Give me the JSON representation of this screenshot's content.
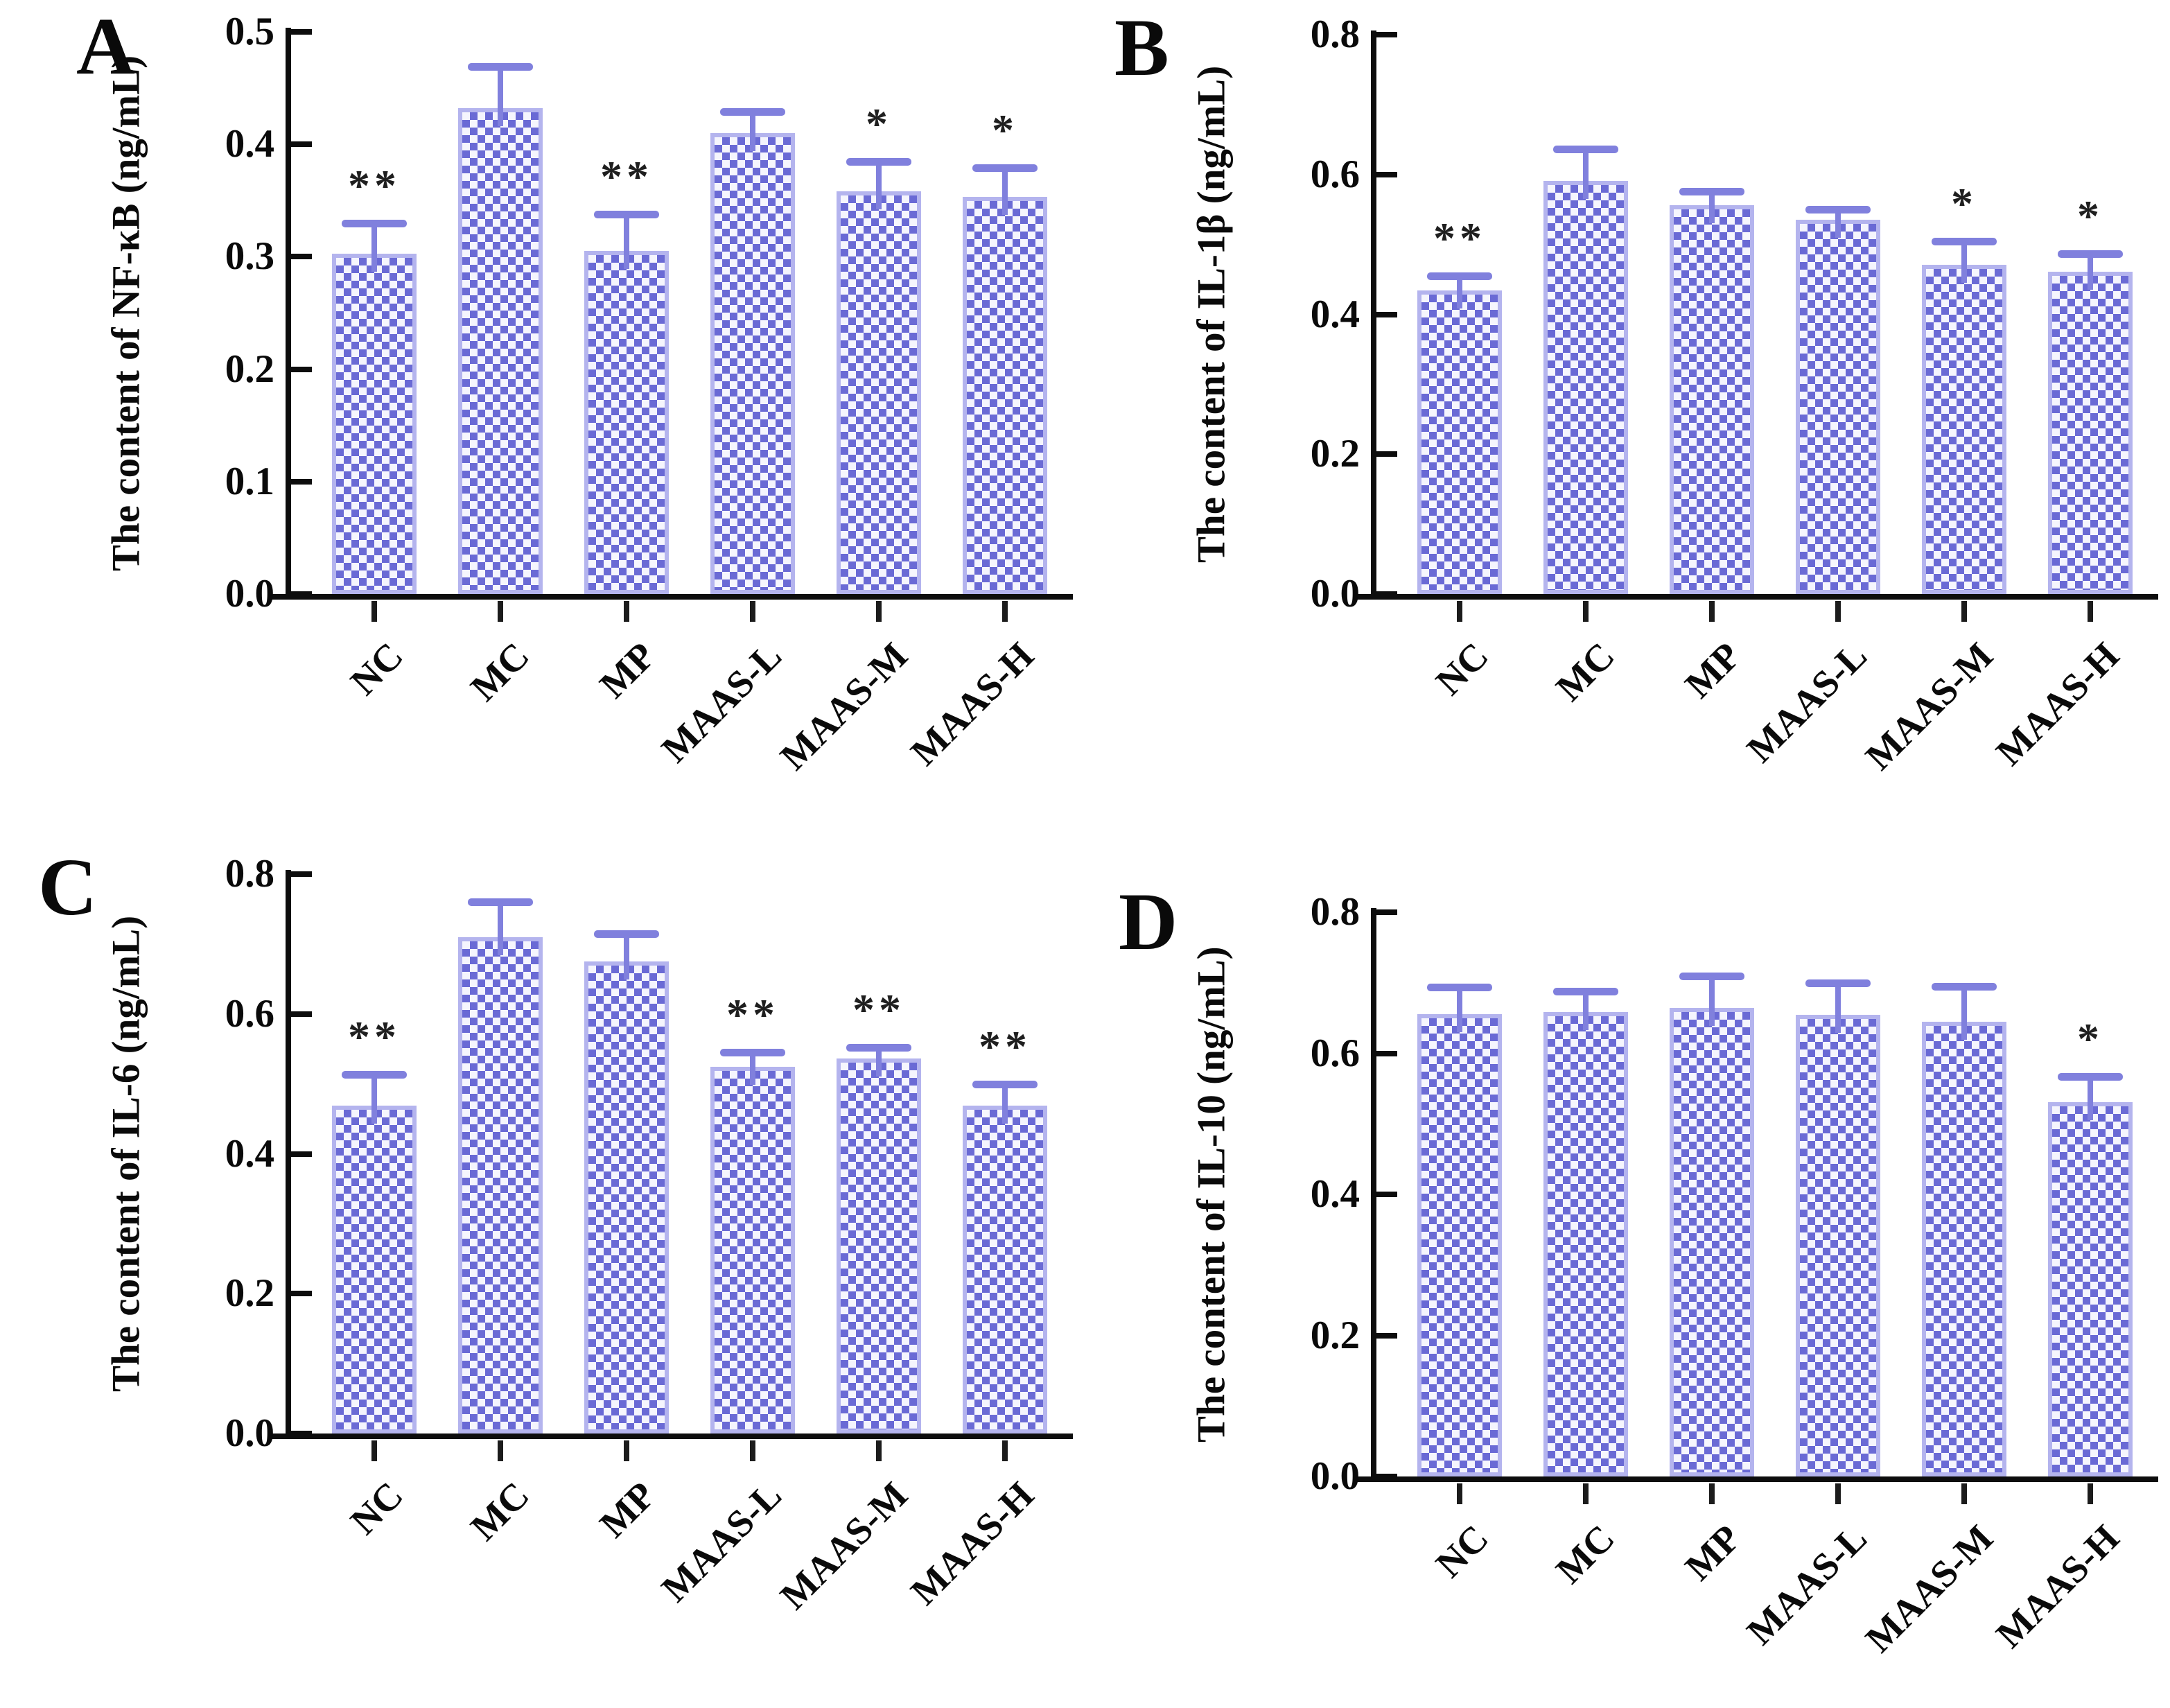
{
  "style": {
    "checker_blue": "#6a6ad5",
    "checker_white": "#f5f5fd",
    "bar_outline": "#b4b4ee",
    "error_bar": "#8080dd",
    "axis_color": "#0d0d0d",
    "significance_color": "#1f1f1f",
    "background": "#ffffff"
  },
  "chart_data": [
    {
      "type": "bar",
      "panel_label": "A",
      "title": "",
      "ylabel": "The content of NF-κB (ng/mL)",
      "xlabel": "",
      "ylim": [
        0.0,
        0.5
      ],
      "ytick_labels": [
        "0.0",
        "0.1",
        "0.2",
        "0.3",
        "0.4",
        "0.5"
      ],
      "grid": false,
      "legend": null,
      "bar_pattern": "checkerboard",
      "categories": [
        "NC",
        "MC",
        "MP",
        "MAAS-L",
        "MAAS-M",
        "MAAS-H"
      ],
      "values": [
        0.303,
        0.432,
        0.305,
        0.41,
        0.358,
        0.353
      ],
      "errors": [
        0.027,
        0.037,
        0.033,
        0.019,
        0.027,
        0.026
      ],
      "significance": [
        "**",
        "",
        "**",
        "",
        "*",
        "*"
      ]
    },
    {
      "type": "bar",
      "panel_label": "B",
      "title": "",
      "ylabel": "The content of IL-1β (ng/mL)",
      "xlabel": "",
      "ylim": [
        0.0,
        0.8
      ],
      "ytick_labels": [
        "0.0",
        "0.2",
        "0.4",
        "0.6",
        "0.8"
      ],
      "grid": false,
      "legend": null,
      "bar_pattern": "checkerboard",
      "categories": [
        "NC",
        "MC",
        "MP",
        "MAAS-L",
        "MAAS-M",
        "MAAS-H"
      ],
      "values": [
        0.434,
        0.591,
        0.556,
        0.535,
        0.471,
        0.461
      ],
      "errors": [
        0.021,
        0.045,
        0.02,
        0.015,
        0.034,
        0.026
      ],
      "significance": [
        "**",
        "",
        "",
        "",
        "*",
        "*"
      ]
    },
    {
      "type": "bar",
      "panel_label": "C",
      "title": "",
      "ylabel": "The content of IL-6 (ng/mL)",
      "xlabel": "",
      "ylim": [
        0.0,
        0.8
      ],
      "ytick_labels": [
        "0.0",
        "0.2",
        "0.4",
        "0.6",
        "0.8"
      ],
      "grid": false,
      "legend": null,
      "bar_pattern": "checkerboard",
      "categories": [
        "NC",
        "MC",
        "MP",
        "MAAS-L",
        "MAAS-M",
        "MAAS-H"
      ],
      "values": [
        0.469,
        0.71,
        0.675,
        0.524,
        0.536,
        0.469
      ],
      "errors": [
        0.045,
        0.05,
        0.04,
        0.021,
        0.016,
        0.031
      ],
      "significance": [
        "**",
        "",
        "",
        "**",
        "**",
        "**"
      ]
    },
    {
      "type": "bar",
      "panel_label": "D",
      "title": "",
      "ylabel": "The content of IL-10 (ng/mL)",
      "xlabel": "",
      "ylim": [
        0.0,
        0.8
      ],
      "ytick_labels": [
        "0.0",
        "0.2",
        "0.4",
        "0.6",
        "0.8"
      ],
      "grid": false,
      "legend": null,
      "bar_pattern": "checkerboard",
      "categories": [
        "NC",
        "MC",
        "MP",
        "MAAS-L",
        "MAAS-M",
        "MAAS-H"
      ],
      "values": [
        0.656,
        0.658,
        0.664,
        0.655,
        0.645,
        0.531
      ],
      "errors": [
        0.038,
        0.03,
        0.046,
        0.045,
        0.05,
        0.036
      ],
      "significance": [
        "",
        "",
        "",
        "",
        "",
        "*"
      ]
    }
  ]
}
